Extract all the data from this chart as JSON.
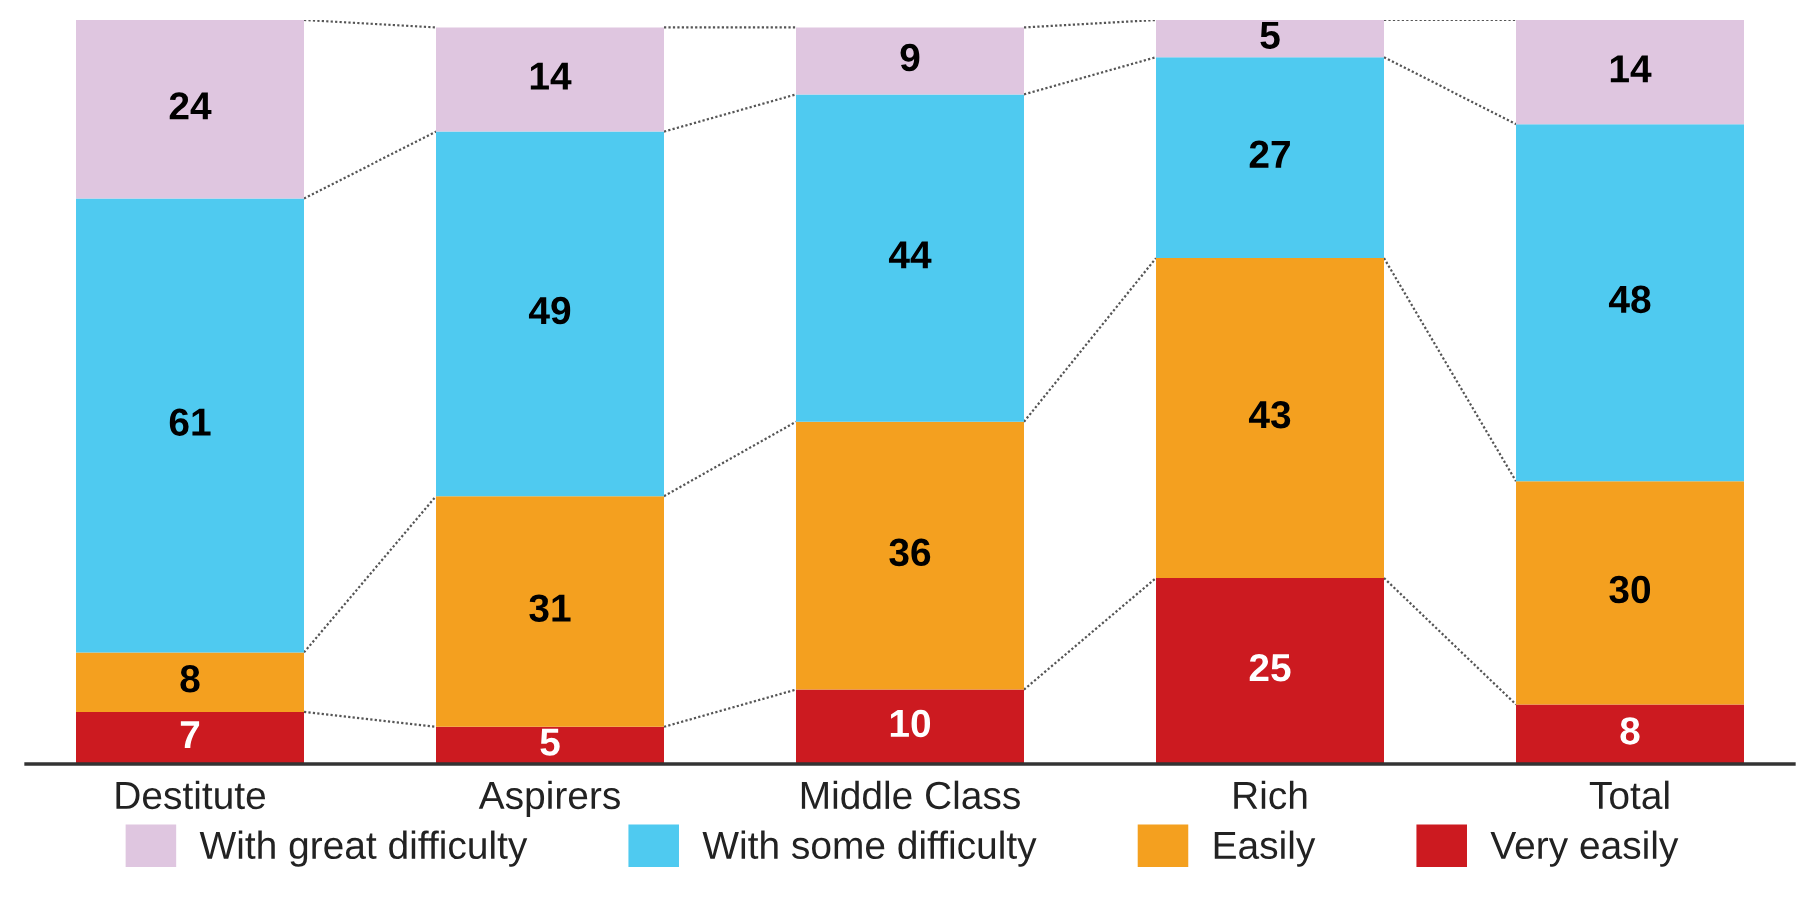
{
  "chart_data": {
    "type": "bar",
    "stacked": true,
    "data_labels": true,
    "grid": false,
    "legend": "bottom",
    "categories": [
      "Destitute",
      "Aspirers",
      "Middle Class",
      "Rich",
      "Total"
    ],
    "series": [
      {
        "name": "Very easily",
        "color": "#cc1a20",
        "values": [
          7,
          5,
          10,
          25,
          8
        ]
      },
      {
        "name": "Easily",
        "color": "#f4a01f",
        "values": [
          8,
          31,
          36,
          43,
          30
        ]
      },
      {
        "name": "With some difficulty",
        "color": "#4fcaf0",
        "values": [
          61,
          49,
          44,
          27,
          48
        ]
      },
      {
        "name": "With great difficulty",
        "color": "#dfc6e0",
        "values": [
          24,
          14,
          9,
          5,
          14
        ]
      }
    ]
  }
}
